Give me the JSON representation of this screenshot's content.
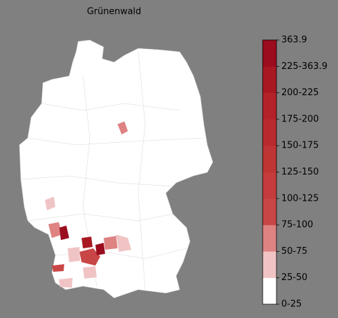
{
  "title": "Grünenwald",
  "colorbar": {
    "labels": [
      "0-25",
      "25-50",
      "50-75",
      "75-100",
      "100-125",
      "125-150",
      "150-175",
      "175-200",
      "200-225",
      "225-363.9",
      "363.9"
    ],
    "colors": [
      "#ffffff",
      "#f0c4c4",
      "#de8282",
      "#c94646",
      "#c43c3c",
      "#bf3434",
      "#b92a2e",
      "#b32228",
      "#a81822",
      "#9a0c1e"
    ]
  }
}
